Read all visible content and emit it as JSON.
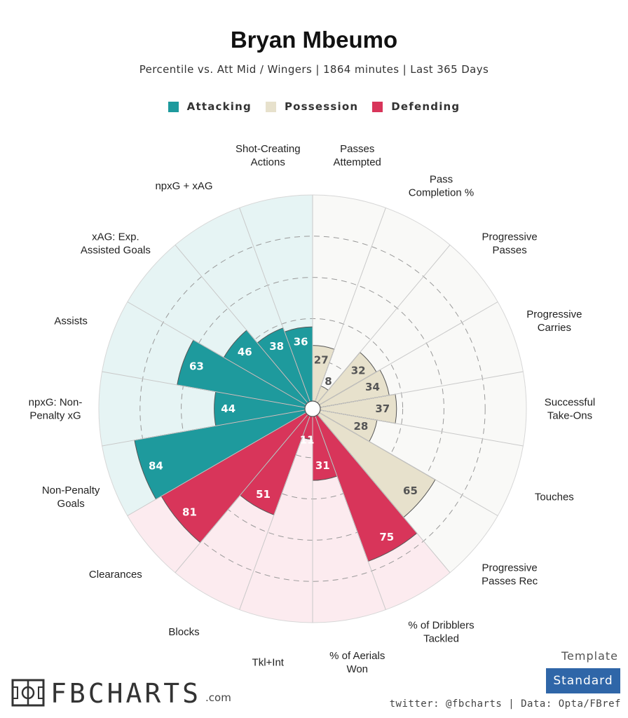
{
  "header": {
    "title": "Bryan Mbeumo",
    "subtitle": "Percentile vs. Att Mid / Wingers | 1864 minutes | Last 365 Days"
  },
  "legend": [
    {
      "label": "Attacking",
      "color": "#1e9a9d"
    },
    {
      "label": "Possession",
      "color": "#e7e1cc"
    },
    {
      "label": "Defending",
      "color": "#d8355a"
    }
  ],
  "chart_data": {
    "type": "polar-bar",
    "title": "Bryan Mbeumo",
    "rlim": [
      0,
      100
    ],
    "grid_rings": [
      20,
      40,
      60,
      80
    ],
    "groups": {
      "Attacking": {
        "bar_color": "#1e9a9d",
        "bg_color": "#e6f4f4"
      },
      "Possession": {
        "bar_color": "#e7e1cc",
        "bg_color": "#f9f9f7"
      },
      "Defending": {
        "bar_color": "#d8355a",
        "bg_color": "#fcebef"
      }
    },
    "categories": [
      {
        "label": "Shot-Creating\nActions",
        "value": 36,
        "group": "Attacking"
      },
      {
        "label": "Passes\nAttempted",
        "value": 27,
        "group": "Possession"
      },
      {
        "label": "Pass\nCompletion %",
        "value": 8,
        "group": "Possession"
      },
      {
        "label": "Progressive\nPasses",
        "value": 32,
        "group": "Possession"
      },
      {
        "label": "Progressive\nCarries",
        "value": 34,
        "group": "Possession"
      },
      {
        "label": "Successful\nTake-Ons",
        "value": 37,
        "group": "Possession"
      },
      {
        "label": "Touches",
        "value": 28,
        "group": "Possession"
      },
      {
        "label": "Progressive\nPasses Rec",
        "value": 65,
        "group": "Possession"
      },
      {
        "label": "% of Dribblers\nTackled",
        "value": 75,
        "group": "Defending"
      },
      {
        "label": "% of Aerials\nWon",
        "value": 31,
        "group": "Defending"
      },
      {
        "label": "Tkl+Int",
        "value": 11,
        "group": "Defending"
      },
      {
        "label": "Blocks",
        "value": 51,
        "group": "Defending"
      },
      {
        "label": "Clearances",
        "value": 81,
        "group": "Defending"
      },
      {
        "label": "Non-Penalty\nGoals",
        "value": 84,
        "group": "Attacking"
      },
      {
        "label": "npxG: Non-\nPenalty xG",
        "value": 44,
        "group": "Attacking"
      },
      {
        "label": "Assists",
        "value": 63,
        "group": "Attacking"
      },
      {
        "label": "xAG: Exp.\nAssisted Goals",
        "value": 46,
        "group": "Attacking"
      },
      {
        "label": "npxG + xAG",
        "value": 38,
        "group": "Attacking"
      }
    ]
  },
  "footer": {
    "logo_text": "FBCHARTS",
    "logo_suffix": ".com",
    "template_label": "Template",
    "template_value": "Standard",
    "credits": "twitter: @fbcharts | Data: Opta/FBref"
  }
}
